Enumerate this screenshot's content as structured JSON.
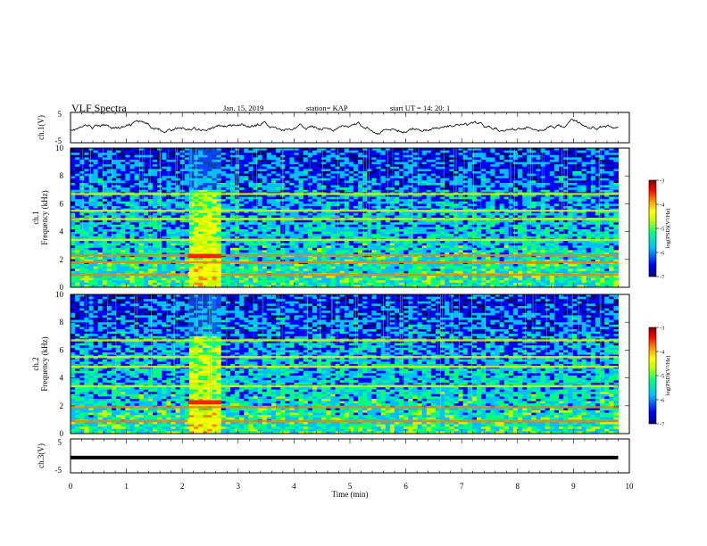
{
  "header": {
    "title": "VLF Spectra",
    "date": "Jan. 15, 2019",
    "station": "station= KAP",
    "start": "start  UT =   14: 20: 1"
  },
  "chart_data": [
    {
      "type": "line",
      "panel": "ch1-waveform",
      "ylabel": "ch.1(V)",
      "ylim": [
        -5,
        5
      ],
      "yticks": [
        "5",
        "-5"
      ],
      "x_units": "min",
      "xlim": [
        0,
        9.8
      ],
      "series_shape": "noisy waveform fluctuating roughly between -2 and 2 V, brief peaks near 1.2, 3.5 and 9.0 min"
    },
    {
      "type": "heatmap",
      "panel": "ch1-spectrogram",
      "ylabel_line1": "ch.1",
      "ylabel_line2": "Frequency (kHz)",
      "ylim": [
        0,
        10
      ],
      "yticks": [
        "0",
        "2",
        "4",
        "6",
        "8",
        "10"
      ],
      "xlim": [
        0,
        9.8
      ],
      "bright_interval_min": [
        2.1,
        2.7
      ],
      "strong_bands_khz": [
        0.9,
        1.8,
        2.3,
        3.4,
        4.9,
        5.5,
        6.7
      ],
      "colorbar": {
        "label": "log(PSD)(V²/Hz)",
        "range": [
          -7,
          -3
        ],
        "ticks": [
          "-3",
          "-4",
          "-5",
          "-6",
          "-7"
        ]
      }
    },
    {
      "type": "heatmap",
      "panel": "ch2-spectrogram",
      "ylabel_line1": "ch.2",
      "ylabel_line2": "Frequency (kHz)",
      "ylim": [
        0,
        10
      ],
      "yticks": [
        "0",
        "2",
        "4",
        "6",
        "8",
        "10"
      ],
      "xlim": [
        0,
        9.8
      ],
      "bright_interval_min": [
        2.1,
        2.7
      ],
      "strong_bands_khz": [
        0.9,
        1.9,
        3.4,
        4.8,
        5.5,
        6.7
      ],
      "colorbar": {
        "label": "log(PSD)(V²/Hz)",
        "range": [
          -7,
          -3
        ],
        "ticks": [
          "-3",
          "-4",
          "-5",
          "-6",
          "-7"
        ]
      }
    },
    {
      "type": "line",
      "panel": "ch3-waveform",
      "ylabel": "ch.3(V)",
      "ylim": [
        -5,
        5
      ],
      "yticks": [
        "5",
        "-5"
      ],
      "xlim": [
        0,
        9.8
      ],
      "constant_value": -0.5
    }
  ],
  "xaxis": {
    "label": "Time (min)",
    "ticks": [
      "0",
      "1",
      "2",
      "3",
      "4",
      "5",
      "6",
      "7",
      "8",
      "9",
      "10"
    ],
    "range": [
      0,
      10
    ]
  },
  "colors": {
    "cmap": [
      "#00007f",
      "#0000ff",
      "#00bfff",
      "#00ff80",
      "#c0ff00",
      "#ffff00",
      "#ff8000",
      "#ff0000",
      "#7f0000"
    ]
  }
}
